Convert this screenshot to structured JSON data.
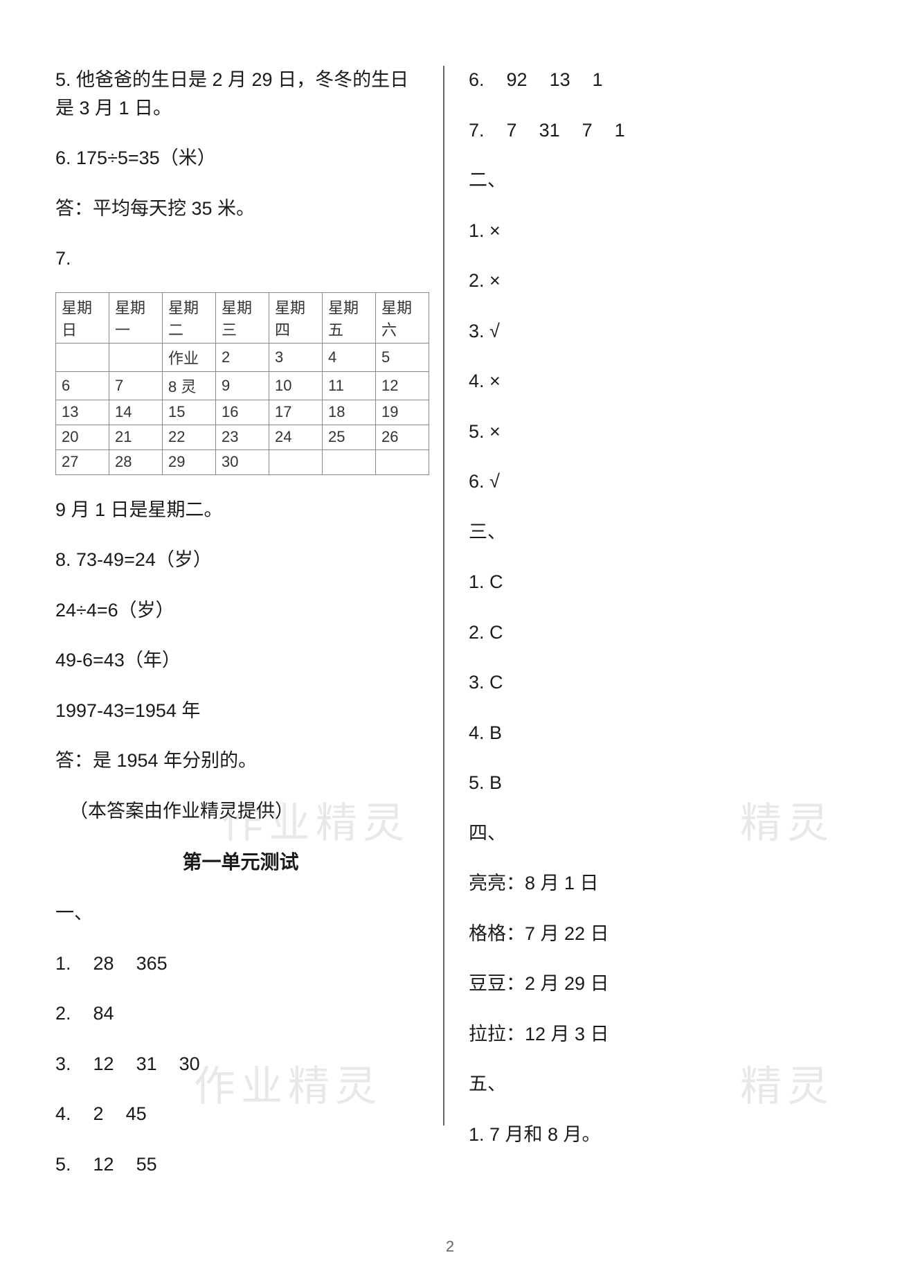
{
  "left": {
    "q5": "5. 他爸爸的生日是 2 月 29 日，冬冬的生日是 3 月 1 日。",
    "q6_calc": "6. 175÷5=35（米）",
    "q6_answer": "答：平均每天挖 35 米。",
    "q7_label": "7.",
    "calendar": {
      "headers": [
        "星期日",
        "星期一",
        "星期二",
        "星期三",
        "星期四",
        "星期五",
        "星期六"
      ],
      "rows": [
        [
          "",
          "",
          "作业",
          "2",
          "3",
          "4",
          "5"
        ],
        [
          "6",
          "7",
          "8 灵",
          "9",
          "10",
          "11",
          "12"
        ],
        [
          "13",
          "14",
          "15",
          "16",
          "17",
          "18",
          "19"
        ],
        [
          "20",
          "21",
          "22",
          "23",
          "24",
          "25",
          "26"
        ],
        [
          "27",
          "28",
          "29",
          "30",
          "",
          "",
          ""
        ]
      ]
    },
    "q7_answer": "9 月 1 日是星期二。",
    "q8_line1": "8. 73-49=24（岁）",
    "q8_line2": "24÷4=6（岁）",
    "q8_line3": "49-6=43（年）",
    "q8_line4": "1997-43=1954 年",
    "q8_answer": "答：是 1954 年分别的。",
    "credit": "（本答案由作业精灵提供）",
    "unit_test_heading": "第一单元测试",
    "section1_label": "一、",
    "s1_items": [
      [
        "1.",
        "28",
        "365"
      ],
      [
        "2.",
        "84"
      ],
      [
        "3.",
        "12",
        "31",
        "30"
      ],
      [
        "4.",
        "2",
        "45"
      ],
      [
        "5.",
        "12",
        "55"
      ]
    ]
  },
  "right": {
    "s1_items_cont": [
      [
        "6.",
        "92",
        "13",
        "1"
      ],
      [
        "7.",
        "7",
        "31",
        "7",
        "1"
      ]
    ],
    "section2_label": "二、",
    "s2_items": [
      "1. ×",
      "2. ×",
      "3. √",
      "4. ×",
      "5. ×",
      "6. √"
    ],
    "section3_label": "三、",
    "s3_items": [
      "1. C",
      "2. C",
      "3. C",
      "4. B",
      "5. B"
    ],
    "section4_label": "四、",
    "s4_items": [
      "亮亮：8 月 1 日",
      "格格：7 月 22 日",
      "豆豆：2 月 29 日",
      "拉拉：12 月 3 日"
    ],
    "section5_label": "五、",
    "s5_items": [
      "1. 7 月和 8 月。"
    ]
  },
  "watermarks": {
    "wm1": "作业精灵",
    "wm2": "精灵",
    "wm3": "作业精灵",
    "wm4": "精灵"
  },
  "page_number": "2"
}
